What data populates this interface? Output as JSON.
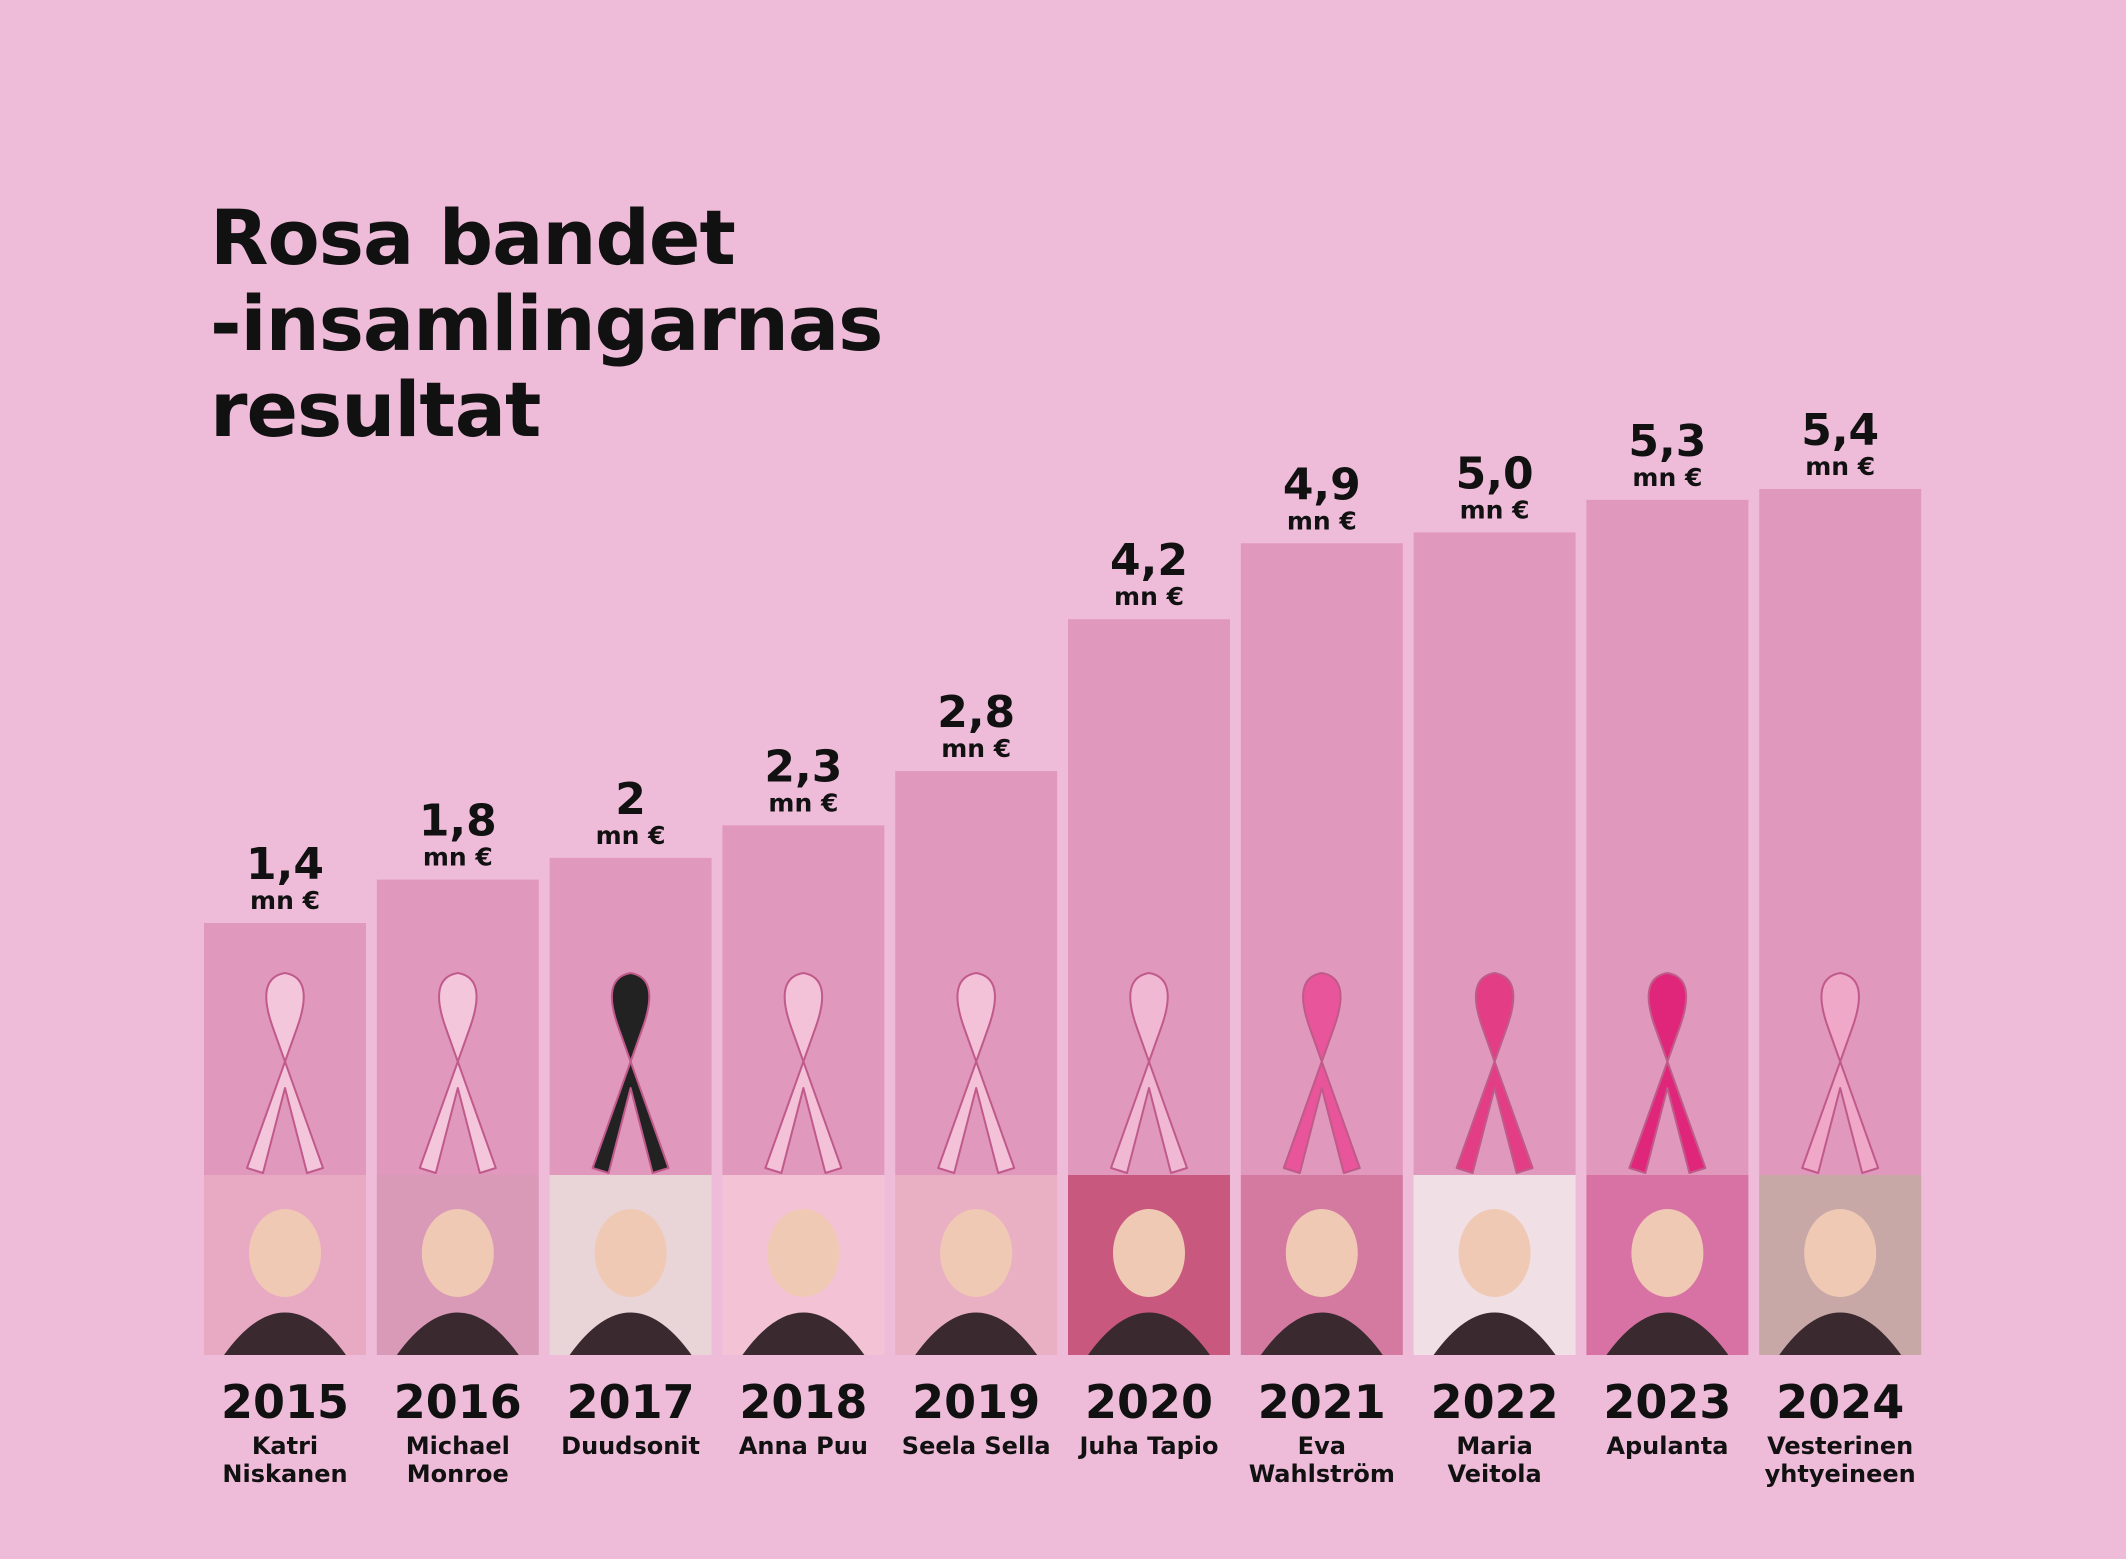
{
  "title_lines": [
    "Rosa bandet",
    "-insamlingarnas",
    "resultat"
  ],
  "colors": {
    "background": "#eebcd9",
    "bar": "#e198bd",
    "text": "#111111"
  },
  "chart_data": {
    "type": "bar",
    "title": "Rosa bandet -insamlingarnas resultat",
    "unit_label": "mn €",
    "categories": [
      "2015",
      "2016",
      "2017",
      "2018",
      "2019",
      "2020",
      "2021",
      "2022",
      "2023",
      "2024"
    ],
    "values": [
      1.4,
      1.8,
      2.0,
      2.3,
      2.8,
      4.2,
      4.9,
      5.0,
      5.3,
      5.4
    ],
    "value_labels": [
      "1,4",
      "1,8",
      "2",
      "2,3",
      "2,8",
      "4,2",
      "4,9",
      "5,0",
      "5,3",
      "5,4"
    ],
    "names": [
      [
        "Katri",
        "Niskanen"
      ],
      [
        "Michael",
        "Monroe"
      ],
      [
        "Duudsonit"
      ],
      [
        "Anna Puu"
      ],
      [
        "Seela Sella"
      ],
      [
        "Juha Tapio"
      ],
      [
        "Eva",
        "Wahlström"
      ],
      [
        "Maria",
        "Veitola"
      ],
      [
        "Apulanta"
      ],
      [
        "Vesterinen",
        "yhtyeineen"
      ]
    ],
    "ribbon_colors": [
      "#f4c6dc",
      "#f4c6dc",
      "#222222",
      "#f3c2d8",
      "#f3c2d8",
      "#f0b8d3",
      "#e8559a",
      "#e33d86",
      "#e0267a",
      "#f0a8c8"
    ],
    "photo_colors": [
      "#e8a9c3",
      "#d99ab7",
      "#e9d4d8",
      "#f3c3d5",
      "#e9b0c3",
      "#c9587f",
      "#d47aa0",
      "#f1dfe6",
      "#d872a4",
      "#c8a7a7"
    ]
  }
}
